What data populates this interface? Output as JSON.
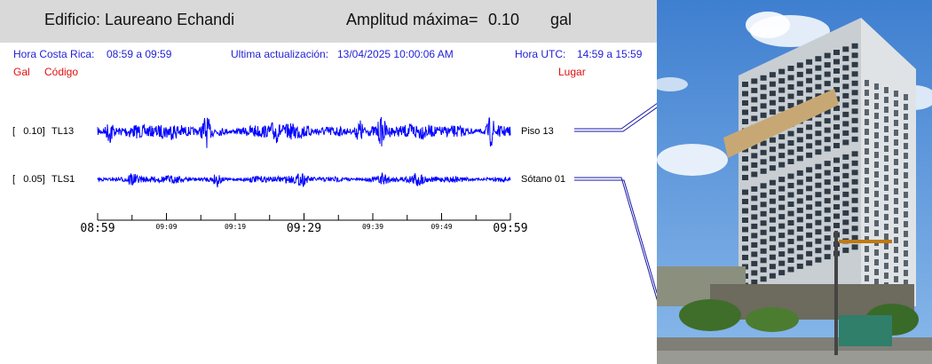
{
  "header": {
    "building": "Edificio: Laureano Echandi",
    "amp_label": "Amplitud máxima=",
    "amp_value": "0.10",
    "amp_unit": "gal"
  },
  "info": {
    "cr_label": "Hora Costa Rica:",
    "cr_range": "08:59 a 09:59",
    "update_label": "Ultima actualización:",
    "update_value": "13/04/2025 10:00:06 AM",
    "utc_label": "Hora UTC:",
    "utc_range": "14:59 a 15:59"
  },
  "columns": {
    "gal": "Gal",
    "code": "Código",
    "place": "Lugar"
  },
  "channels": [
    {
      "scale": "[   0.10]",
      "code": "TL13",
      "place": "Piso 13",
      "amplitude": 0.1
    },
    {
      "scale": "[   0.05]",
      "code": "TLS1",
      "place": "Sótano 01",
      "amplitude": 0.05
    }
  ],
  "time_axis": {
    "major": [
      "08:59",
      "09:29",
      "09:59"
    ],
    "minor": [
      "09:09",
      "09:19",
      "09:39",
      "09:49"
    ]
  },
  "colors": {
    "trace": "#0000ff",
    "info_text": "#1f1fd6",
    "column_text": "#e01010",
    "header_bg": "#d9d9d9"
  }
}
